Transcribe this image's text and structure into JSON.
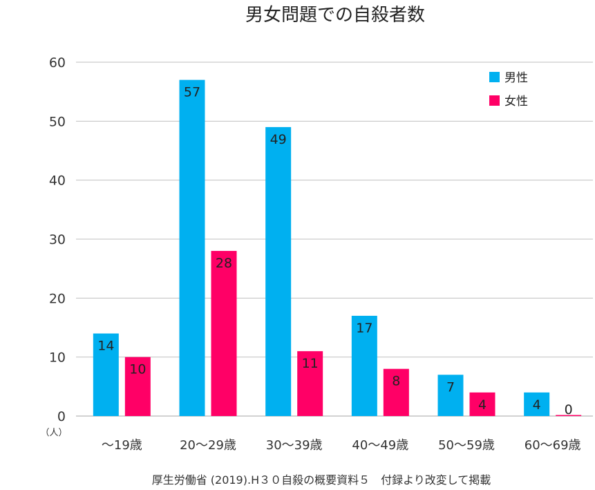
{
  "chart_data": {
    "type": "bar",
    "title": "男女問題での自殺者数",
    "unit_label": "（人）",
    "source": "厚生労働省 (2019).H３０自殺の概要資料５　付録より改変して掲載",
    "categories": [
      "〜19歳",
      "20〜29歳",
      "30〜39歳",
      "40〜49歳",
      "50〜59歳",
      "60〜69歳"
    ],
    "series": [
      {
        "name": "男性",
        "color": "#00b0f0",
        "values": [
          14,
          57,
          49,
          17,
          7,
          4
        ]
      },
      {
        "name": "女性",
        "color": "#ff0066",
        "values": [
          10,
          28,
          11,
          8,
          4,
          0
        ]
      }
    ],
    "ylim": [
      0,
      60
    ],
    "yticks": [
      0,
      10,
      20,
      30,
      40,
      50,
      60
    ],
    "grid": true,
    "legend_position": "top-right"
  }
}
